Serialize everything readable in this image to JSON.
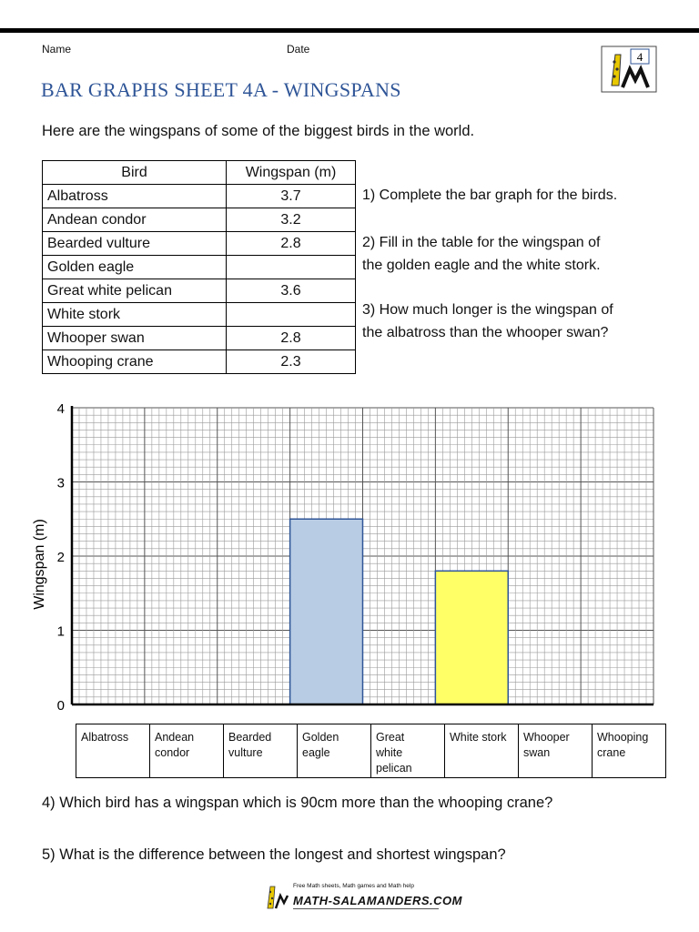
{
  "header": {
    "name_label": "Name",
    "date_label": "Date",
    "logo_number": "4",
    "title": "BAR GRAPHS SHEET 4A - WINGSPANS"
  },
  "intro": "Here are the wingspans of some of the biggest birds in the world.",
  "table": {
    "headers": [
      "Bird",
      "Wingspan (m)"
    ],
    "rows": [
      {
        "bird": "Albatross",
        "wingspan": "3.7"
      },
      {
        "bird": "Andean condor",
        "wingspan": "3.2"
      },
      {
        "bird": "Bearded vulture",
        "wingspan": "2.8"
      },
      {
        "bird": "Golden eagle",
        "wingspan": ""
      },
      {
        "bird": "Great white pelican",
        "wingspan": "3.6"
      },
      {
        "bird": "White stork",
        "wingspan": ""
      },
      {
        "bird": "Whooper swan",
        "wingspan": "2.8"
      },
      {
        "bird": "Whooping crane",
        "wingspan": "2.3"
      }
    ]
  },
  "questions": {
    "q1": "1) Complete the bar graph for the birds.",
    "q2_line1": "2) Fill in the table for the wingspan of",
    "q2_line2": "the golden eagle and the white stork.",
    "q3_line1": "3) How much longer is the wingspan of",
    "q3_line2": "the albatross than the whooper swan?",
    "q4": "4) Which bird has a wingspan which is 90cm more than the whooping crane?",
    "q5": "5) What is the difference between the longest and shortest wingspan?"
  },
  "chart_data": {
    "type": "bar",
    "categories": [
      "Albatross",
      "Andean condor",
      "Bearded vulture",
      "Golden eagle",
      "Great white pelican",
      "White stork",
      "Whooper swan",
      "Whooping crane"
    ],
    "category_lines": [
      [
        "Albatross"
      ],
      [
        "Andean",
        "condor"
      ],
      [
        "Bearded",
        "vulture"
      ],
      [
        "Golden",
        "eagle"
      ],
      [
        "Great",
        "white",
        "pelican"
      ],
      [
        "White stork"
      ],
      [
        "Whooper",
        "swan"
      ],
      [
        "Whooping",
        "crane"
      ]
    ],
    "values": [
      null,
      null,
      null,
      2.5,
      null,
      1.8,
      null,
      null
    ],
    "bar_colors": [
      null,
      null,
      null,
      "#b8cce4",
      null,
      "#ffff66",
      null,
      null
    ],
    "ylabel": "Wingspan (m)",
    "xlabel": "",
    "ylim": [
      0,
      4
    ],
    "yticks": [
      "0",
      "1",
      "2",
      "3",
      "4"
    ],
    "grid": true
  },
  "footer": {
    "tagline": "Free Math sheets, Math games and Math help",
    "site": "MATH-SALAMANDERS.COM"
  }
}
